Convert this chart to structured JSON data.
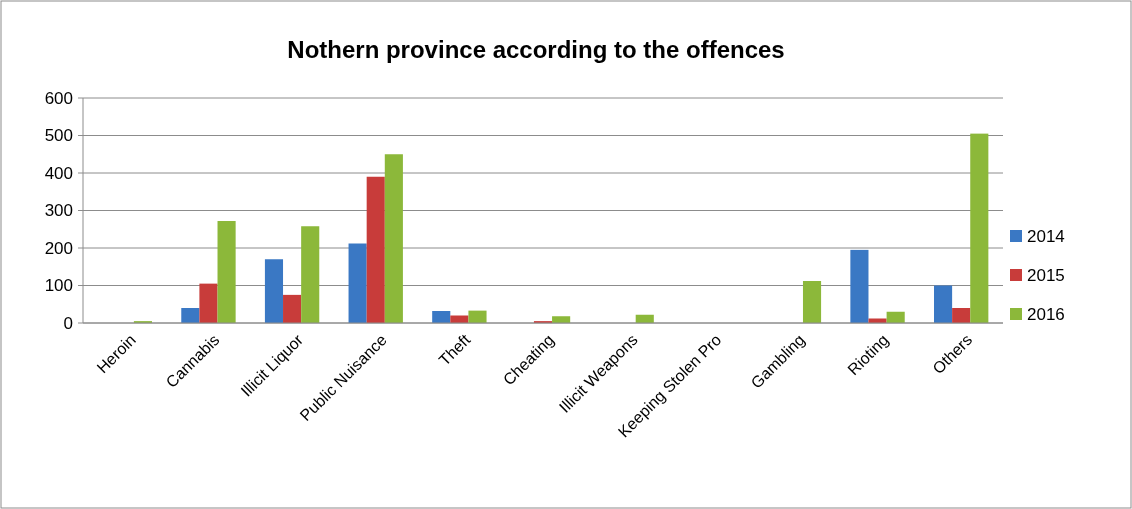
{
  "chart_data": {
    "type": "bar",
    "title": "Nothern province according to the offences",
    "categories": [
      "Heroin",
      "Cannabis",
      "Illicit Liquor",
      "Public Nuisance",
      "Theft",
      "Cheating",
      "Illicit Weapons",
      "Keeping Stolen Pro",
      "Gambling",
      "Rioting",
      "Others"
    ],
    "series": [
      {
        "name": "2014",
        "color": "#3a78c4",
        "values": [
          0,
          40,
          170,
          212,
          32,
          null,
          0,
          0,
          0,
          195,
          100
        ]
      },
      {
        "name": "2015",
        "color": "#c83c3a",
        "values": [
          0,
          105,
          75,
          390,
          20,
          5,
          null,
          0,
          null,
          12,
          40
        ]
      },
      {
        "name": "2016",
        "color": "#8cb83a",
        "values": [
          5,
          272,
          258,
          450,
          33,
          18,
          22,
          0,
          112,
          30,
          505
        ]
      }
    ],
    "ylim": [
      0,
      600
    ],
    "yticks": [
      0,
      100,
      200,
      300,
      400,
      500,
      600
    ],
    "grid": "y",
    "legend": "right"
  }
}
